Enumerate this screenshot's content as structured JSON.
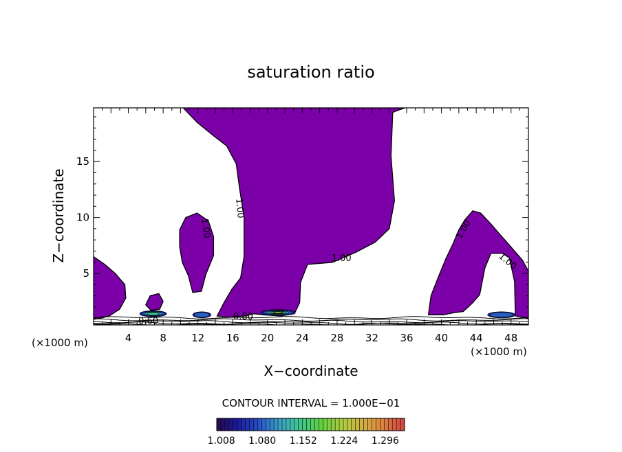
{
  "chart_data": {
    "type": "contour",
    "title": "saturation ratio",
    "xlabel": "X−coordinate",
    "ylabel": "Z−coordinate",
    "x_unit_left": "(×1000 m)",
    "x_unit_right": "(×1000 m)",
    "xlim": [
      0,
      50
    ],
    "ylim": [
      0.4,
      19.8
    ],
    "x_ticks": [
      4,
      8,
      12,
      16,
      20,
      24,
      28,
      32,
      36,
      40,
      44,
      48
    ],
    "y_ticks": [
      5,
      10,
      15
    ],
    "contour_interval_text": "CONTOUR INTERVAL = 1.000E−01",
    "fill_color": "#7B00A8",
    "colorbar": {
      "range": [
        1.0,
        1.33
      ],
      "tick_labels": [
        "1.008",
        "1.080",
        "1.152",
        "1.224",
        "1.296"
      ],
      "colors": [
        "#2a0a50",
        "#1a1a9a",
        "#2850c8",
        "#3aa0c8",
        "#40c890",
        "#60d040",
        "#b0d040",
        "#d0b040",
        "#e08040",
        "#d04040"
      ]
    },
    "contour_labels": [
      {
        "text": "1.00",
        "x": 16.5,
        "y": 10.8,
        "angle": 85
      },
      {
        "text": "1.00",
        "x": 12.6,
        "y": 9.0,
        "angle": 82
      },
      {
        "text": "1.00",
        "x": 28.5,
        "y": 6.1,
        "angle": 0
      },
      {
        "text": "1.00",
        "x": 42.8,
        "y": 8.8,
        "angle": -60
      },
      {
        "text": "1.00",
        "x": 47.4,
        "y": 5.9,
        "angle": 40
      },
      {
        "text": "0.60",
        "x": 6.3,
        "y": 0.5,
        "angle": 0
      },
      {
        "text": "0.80",
        "x": 17.2,
        "y": 0.9,
        "angle": 0
      }
    ],
    "supersaturated_regions": [
      {
        "name": "left-edge",
        "outline": [
          [
            0,
            0.9
          ],
          [
            0,
            6.5
          ],
          [
            1.3,
            5.8
          ],
          [
            2.5,
            5.0
          ],
          [
            3.6,
            4.0
          ],
          [
            3.7,
            2.8
          ],
          [
            3.0,
            1.8
          ],
          [
            1.8,
            1.2
          ],
          [
            0.8,
            1.0
          ]
        ]
      },
      {
        "name": "central-column",
        "outline": [
          [
            10.3,
            19.8
          ],
          [
            35.8,
            19.8
          ],
          [
            34.4,
            19.4
          ],
          [
            34.2,
            15.5
          ],
          [
            34.6,
            11.5
          ],
          [
            34.0,
            9.0
          ],
          [
            32.4,
            7.8
          ],
          [
            30.2,
            6.9
          ],
          [
            27.5,
            6.0
          ],
          [
            24.6,
            5.8
          ],
          [
            23.8,
            4.2
          ],
          [
            23.7,
            2.4
          ],
          [
            23.1,
            1.4
          ],
          [
            21.5,
            1.2
          ],
          [
            19.5,
            1.3
          ],
          [
            18.4,
            1.4
          ],
          [
            17.5,
            1.2
          ],
          [
            15.7,
            1.1
          ],
          [
            14.2,
            1.2
          ],
          [
            15.0,
            2.4
          ],
          [
            15.9,
            3.6
          ],
          [
            16.9,
            4.6
          ],
          [
            17.3,
            6.5
          ],
          [
            17.3,
            10.0
          ],
          [
            16.8,
            12.5
          ],
          [
            16.4,
            14.8
          ],
          [
            15.3,
            16.4
          ],
          [
            13.8,
            17.3
          ],
          [
            11.9,
            18.5
          ]
        ]
      },
      {
        "name": "left-lobe",
        "outline": [
          [
            9.9,
            8.9
          ],
          [
            10.6,
            10.0
          ],
          [
            11.9,
            10.4
          ],
          [
            13.2,
            9.7
          ],
          [
            13.8,
            8.3
          ],
          [
            13.8,
            6.6
          ],
          [
            12.9,
            4.9
          ],
          [
            12.4,
            3.4
          ],
          [
            11.4,
            3.3
          ],
          [
            10.9,
            4.8
          ],
          [
            10.2,
            6.0
          ],
          [
            9.9,
            7.4
          ]
        ]
      },
      {
        "name": "small-blob-8",
        "outline": [
          [
            6.0,
            2.2
          ],
          [
            6.5,
            3.0
          ],
          [
            7.5,
            3.2
          ],
          [
            8.0,
            2.5
          ],
          [
            7.6,
            1.8
          ],
          [
            6.6,
            1.7
          ]
        ]
      },
      {
        "name": "right-arch",
        "outline": [
          [
            38.5,
            1.3
          ],
          [
            38.8,
            3.0
          ],
          [
            39.6,
            4.6
          ],
          [
            40.5,
            6.3
          ],
          [
            41.3,
            7.6
          ],
          [
            42.0,
            8.9
          ],
          [
            42.7,
            9.8
          ],
          [
            43.6,
            10.6
          ],
          [
            44.5,
            10.4
          ],
          [
            45.6,
            9.5
          ],
          [
            46.6,
            8.6
          ],
          [
            47.4,
            7.9
          ],
          [
            48.3,
            7.1
          ],
          [
            49.3,
            6.2
          ],
          [
            50,
            5.2
          ],
          [
            50,
            1.0
          ],
          [
            48.5,
            1.2
          ],
          [
            48.4,
            4.3
          ],
          [
            47.8,
            6.4
          ],
          [
            47.0,
            6.8
          ],
          [
            45.7,
            6.8
          ],
          [
            45.0,
            5.5
          ],
          [
            44.4,
            3.1
          ],
          [
            43.5,
            2.3
          ],
          [
            42.5,
            1.6
          ],
          [
            41.5,
            1.5
          ],
          [
            40.2,
            1.3
          ]
        ]
      }
    ],
    "high_value_patches": [
      {
        "x_range": [
          5.3,
          8.4
        ],
        "z_center": 1.4,
        "peak": 1.15
      },
      {
        "x_range": [
          11.4,
          13.5
        ],
        "z_center": 1.3,
        "peak": 1.08
      },
      {
        "x_range": [
          19.2,
          23.2
        ],
        "z_center": 1.5,
        "peak": 1.25
      },
      {
        "x_range": [
          45.3,
          48.5
        ],
        "z_center": 1.3,
        "peak": 1.08
      }
    ]
  }
}
